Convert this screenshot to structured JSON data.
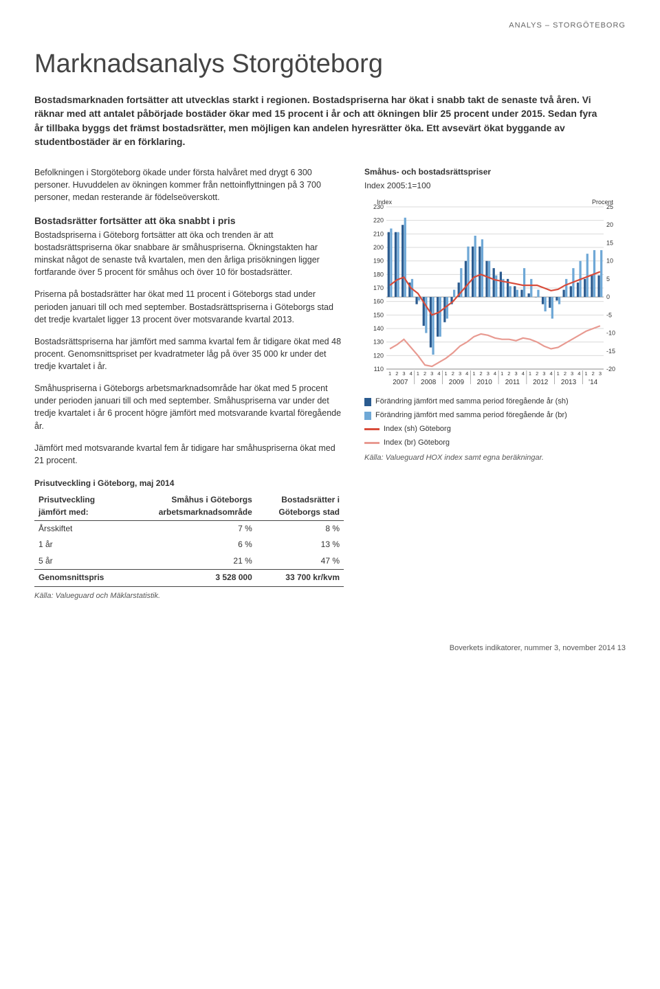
{
  "eyebrow": "ANALYS – STORGÖTEBORG",
  "title": "Marknadsanalys Storgöteborg",
  "lead": "Bostadsmarknaden fortsätter att utvecklas starkt i regionen. Bostadspriserna har ökat i snabb takt de senaste två åren. Vi räknar med att antalet påbörjade bostäder ökar med 15 procent i år och att ökningen blir 25 procent under 2015. Sedan fyra år tillbaka byggs det främst bostadsrätter, men möjligen kan andelen hyresrätter öka. Ett avsevärt ökat byggande av studentbostäder är en förklaring.",
  "paras": [
    "Befolkningen i Storgöteborg ökade under första halvåret med drygt 6 300 personer. Huvuddelen av ökningen kommer från nettoinflyttningen på 3 700 personer, medan resterande är födelseöverskott."
  ],
  "h3_1": "Bostadsrätter fortsätter att öka snabbt i pris",
  "paras2": [
    "Bostadspriserna i Göteborg fortsätter att öka och trenden är att bostadsrättspriserna ökar snabbare är småhuspriserna. Ökningstakten har minskat något de senaste två kvartalen, men den årliga prisökningen ligger fortfarande över 5 procent för småhus och över 10 för bostadsrätter.",
    "Priserna på bostadsrätter har ökat med 11 procent i Göteborgs stad under perioden januari till och med september. Bostadsrättspriserna i Göteborgs stad det tredje kvartalet ligger 13 procent över motsvarande kvartal 2013.",
    "Bostadsrättspriserna har jämfört med samma kvartal fem år tidigare ökat med 48 procent. Genomsnittspriset per kvadratmeter låg på över 35 000 kr under det tredje kvartalet i år.",
    "Småhuspriserna i Göteborgs arbetsmarknadsområde har ökat med 5 procent under perioden januari till och med september. Småhuspriserna var under det tredje kvartalet i år 6 procent högre jämfört med motsvarande kvartal föregående år.",
    "Jämfört med motsvarande kvartal fem år tidigare har småhuspriserna ökat med 21 procent."
  ],
  "chart": {
    "title": "Småhus- och bostadsrättspriser",
    "subtitle": "Index 2005:1=100",
    "y_left_label": "Index",
    "y_right_label": "Procent",
    "y_left_min": 110,
    "y_left_max": 230,
    "y_left_step": 10,
    "y_right_min": -20,
    "y_right_max": 25,
    "y_right_step": 5,
    "bg": "#ffffff",
    "grid_color": "#d9d9d9",
    "colors": {
      "bar_sh": "#2b5b8f",
      "bar_br": "#6fa8d6",
      "line_sh": "#d84b3a",
      "line_br": "#e89a91"
    },
    "years": [
      "2007",
      "2008",
      "2009",
      "2010",
      "2011",
      "2012",
      "2013",
      "'14"
    ],
    "quarters_per_year": [
      4,
      4,
      4,
      4,
      4,
      4,
      4,
      3
    ],
    "bars_sh": [
      18,
      18,
      20,
      4,
      -2,
      -8,
      -14,
      -11,
      -7,
      -2,
      4,
      10,
      14,
      14,
      10,
      8,
      7,
      5,
      3,
      2,
      1,
      0,
      -2,
      -3,
      -1,
      2,
      3,
      4,
      5,
      6,
      6
    ],
    "bars_br": [
      19,
      18,
      22,
      5,
      -1,
      -10,
      -16,
      -11,
      -6,
      2,
      8,
      14,
      17,
      16,
      10,
      6,
      5,
      3,
      2,
      8,
      5,
      2,
      -4,
      -6,
      -2,
      5,
      8,
      10,
      12,
      13,
      13
    ],
    "index_sh": [
      172,
      176,
      178,
      170,
      166,
      158,
      150,
      152,
      156,
      160,
      166,
      172,
      178,
      180,
      178,
      176,
      175,
      174,
      173,
      172,
      172,
      172,
      170,
      168,
      169,
      172,
      174,
      176,
      178,
      180,
      182
    ],
    "index_br": [
      125,
      128,
      132,
      126,
      120,
      113,
      112,
      115,
      118,
      122,
      127,
      130,
      134,
      136,
      135,
      133,
      132,
      132,
      131,
      133,
      132,
      130,
      127,
      125,
      126,
      129,
      132,
      135,
      138,
      140,
      142
    ],
    "legend": {
      "bar_sh": "Förändring jämfört med samma period föregående år (sh)",
      "bar_br": "Förändring jämfört med samma period föregående år (br)",
      "line_sh": "Index (sh) Göteborg",
      "line_br": "Index (br) Göteborg"
    },
    "source": "Källa: Valueguard HOX index samt egna beräkningar."
  },
  "table": {
    "heading": "Prisutveckling i Göteborg, maj 2014",
    "header_row1": [
      "Prisutveckling",
      "Småhus i Göteborgs",
      "Bostadsrätter i"
    ],
    "header_row2": [
      "jämfört med:",
      "arbetsmarknadsområde",
      "Göteborgs stad"
    ],
    "rows": [
      [
        "Årsskiftet",
        "7 %",
        "8 %"
      ],
      [
        "1 år",
        "6 %",
        "13 %"
      ],
      [
        "5 år",
        "21 %",
        "47 %"
      ]
    ],
    "footer_row": [
      "Genomsnittspris",
      "3 528 000",
      "33 700 kr/kvm"
    ],
    "source": "Källa: Valueguard och Mäklarstatistik."
  },
  "footer": "Boverkets indikatorer, nummer 3, november 2014    13"
}
